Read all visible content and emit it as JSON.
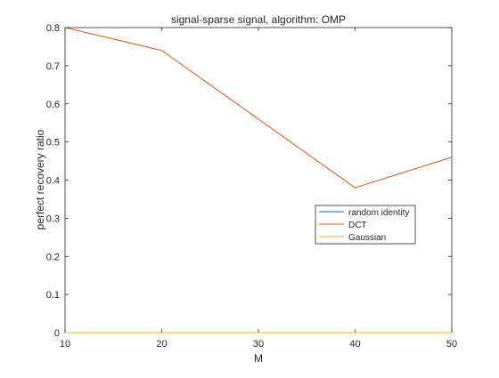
{
  "chart_data": {
    "type": "line",
    "title": "signal-sparse signal, algorithm: OMP",
    "xlabel": "M",
    "ylabel": "perfect recovery ratio",
    "xlim": [
      10,
      50
    ],
    "ylim": [
      0,
      0.8
    ],
    "x": [
      10,
      20,
      30,
      40,
      50
    ],
    "xticks": [
      10,
      20,
      30,
      40,
      50
    ],
    "yticks": [
      0,
      0.1,
      0.2,
      0.3,
      0.4,
      0.5,
      0.6,
      0.7,
      0.8
    ],
    "grid": false,
    "legend_position": "inside right, below center",
    "series": [
      {
        "name": "random identity",
        "values": [
          0,
          0,
          0,
          0,
          0
        ],
        "color": "#0072bd"
      },
      {
        "name": "DCT",
        "values": [
          0.8,
          0.74,
          0.56,
          0.38,
          0.46
        ],
        "color": "#d95319"
      },
      {
        "name": "Gaussian",
        "values": [
          0,
          0,
          0,
          0,
          0
        ],
        "color": "#edb120"
      }
    ]
  }
}
